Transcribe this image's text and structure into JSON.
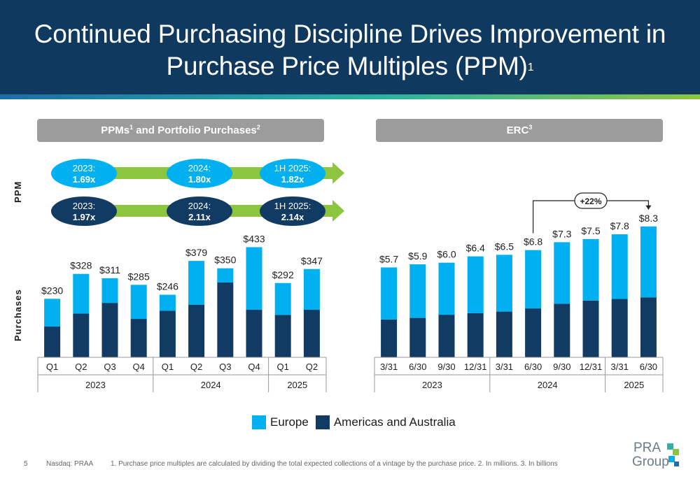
{
  "header": {
    "title_line1": "Continued Purchasing Discipline Drives Improvement in",
    "title_line2": "Purchase Price Multiples (PPM)",
    "title_sup": "1"
  },
  "left_panel": {
    "title": "PPMs",
    "title_sup1": "1",
    "title_mid": " and Portfolio Purchases",
    "title_sup2": "2",
    "ppm_axis_label": "PPM",
    "purchases_axis_label": "Purchases",
    "ppm_europe": [
      {
        "period": "2023:",
        "value": "1.69x"
      },
      {
        "period": "2024:",
        "value": "1.80x"
      },
      {
        "period": "1H 2025:",
        "value": "1.82x"
      }
    ],
    "ppm_americas": [
      {
        "period": "2023:",
        "value": "1.97x"
      },
      {
        "period": "2024:",
        "value": "2.11x"
      },
      {
        "period": "1H 2025:",
        "value": "2.14x"
      }
    ]
  },
  "right_panel": {
    "title": "ERC",
    "title_sup": "3",
    "growth_label": "+22%"
  },
  "legend": {
    "europe": "Europe",
    "americas": "Americas and Australia"
  },
  "colors": {
    "europe": "#00b0f0",
    "americas": "#123b63",
    "header": "#10395f",
    "arrow": "#8cc63f"
  },
  "footer": {
    "page": "5",
    "ticker": "Nasdaq: PRAA",
    "note": "1. Purchase price multiples are calculated by dividing the total expected collections of a vintage by the purchase price. 2. In millions. 3. In billions"
  },
  "logo": {
    "line1": "PRA",
    "line2": "Group"
  },
  "chart_data": [
    {
      "type": "bar",
      "title": "PPMs and Portfolio Purchases",
      "stacked": true,
      "categories": [
        "Q1",
        "Q2",
        "Q3",
        "Q4",
        "Q1",
        "Q2",
        "Q3",
        "Q4",
        "Q1",
        "Q2"
      ],
      "groups": [
        {
          "label": "2023",
          "count": 4
        },
        {
          "label": "2024",
          "count": 4
        },
        {
          "label": "2025",
          "count": 2
        }
      ],
      "totals": [
        "$230",
        "$328",
        "$311",
        "$285",
        "$246",
        "$379",
        "$350",
        "$433",
        "$292",
        "$347"
      ],
      "series": [
        {
          "name": "Americas and Australia",
          "values": [
            121,
            172,
            214,
            151,
            183,
            207,
            294,
            187,
            167,
            187
          ]
        },
        {
          "name": "Europe",
          "values": [
            109,
            156,
            97,
            134,
            63,
            172,
            56,
            246,
            125,
            160
          ]
        }
      ],
      "ylim": [
        0,
        470
      ]
    },
    {
      "type": "bar",
      "title": "ERC",
      "stacked": true,
      "categories": [
        "3/31",
        "6/30",
        "9/30",
        "12/31",
        "3/31",
        "6/30",
        "9/30",
        "12/31",
        "3/31",
        "6/30"
      ],
      "groups": [
        {
          "label": "2023",
          "count": 4
        },
        {
          "label": "2024",
          "count": 4
        },
        {
          "label": "2025",
          "count": 2
        }
      ],
      "totals": [
        "$5.7",
        "$5.9",
        "$6.0",
        "$6.4",
        "$6.5",
        "$6.8",
        "$7.3",
        "$7.5",
        "$7.8",
        "$8.3"
      ],
      "series": [
        {
          "name": "Americas and Australia",
          "values": [
            2.4,
            2.5,
            2.7,
            2.8,
            2.9,
            3.1,
            3.4,
            3.6,
            3.7,
            3.8
          ]
        },
        {
          "name": "Europe",
          "values": [
            3.3,
            3.4,
            3.3,
            3.6,
            3.6,
            3.7,
            3.9,
            3.9,
            4.1,
            4.5
          ]
        }
      ],
      "annotation": {
        "text": "+22%",
        "from_index": 5,
        "to_index": 9
      },
      "ylim": [
        0,
        9.0
      ]
    }
  ]
}
